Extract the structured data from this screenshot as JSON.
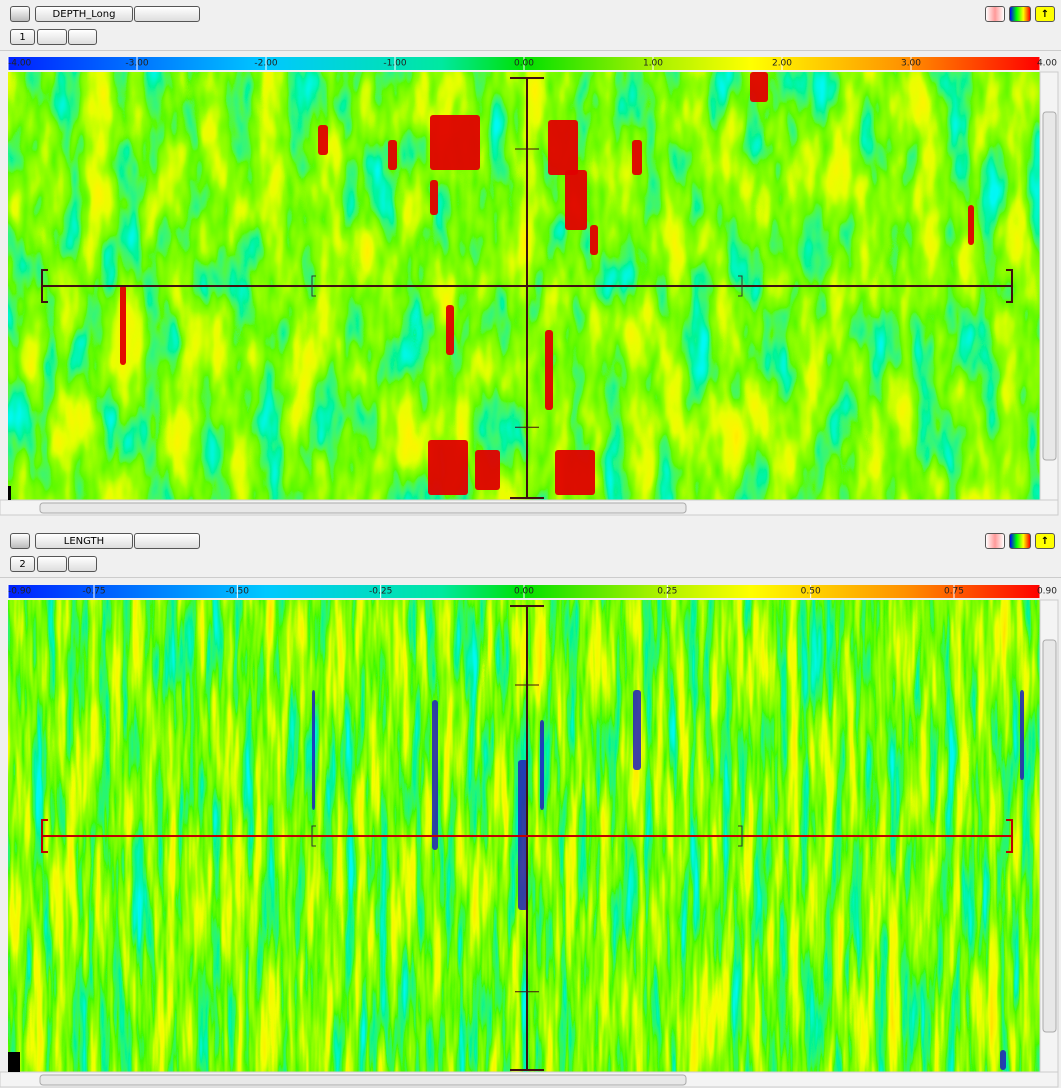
{
  "panels": [
    {
      "title": "DEPTH_Long",
      "index": "1",
      "scale": [
        {
          "value": -4,
          "label": "-4.00"
        },
        {
          "value": -3,
          "label": "-3.00"
        },
        {
          "value": -2,
          "label": "-2.00"
        },
        {
          "value": -1,
          "label": "-1.00"
        },
        {
          "value": 0,
          "label": "0.00"
        },
        {
          "value": 1,
          "label": "1.00"
        },
        {
          "value": 2,
          "label": "2.00"
        },
        {
          "value": 3,
          "label": "3.00"
        },
        {
          "value": 4,
          "label": "4.00"
        }
      ]
    },
    {
      "title": "LENGTH",
      "index": "2",
      "scale": [
        {
          "value": -0.9,
          "label": "-0.90"
        },
        {
          "value": -0.75,
          "label": "-0.75"
        },
        {
          "value": -0.5,
          "label": "-0.50"
        },
        {
          "value": -0.25,
          "label": "-0.25"
        },
        {
          "value": 0,
          "label": "0.00"
        },
        {
          "value": 0.25,
          "label": "0.25"
        },
        {
          "value": 0.5,
          "label": "0.50"
        },
        {
          "value": 0.75,
          "label": "0.75"
        },
        {
          "value": 0.9,
          "label": "0.90"
        }
      ]
    }
  ]
}
